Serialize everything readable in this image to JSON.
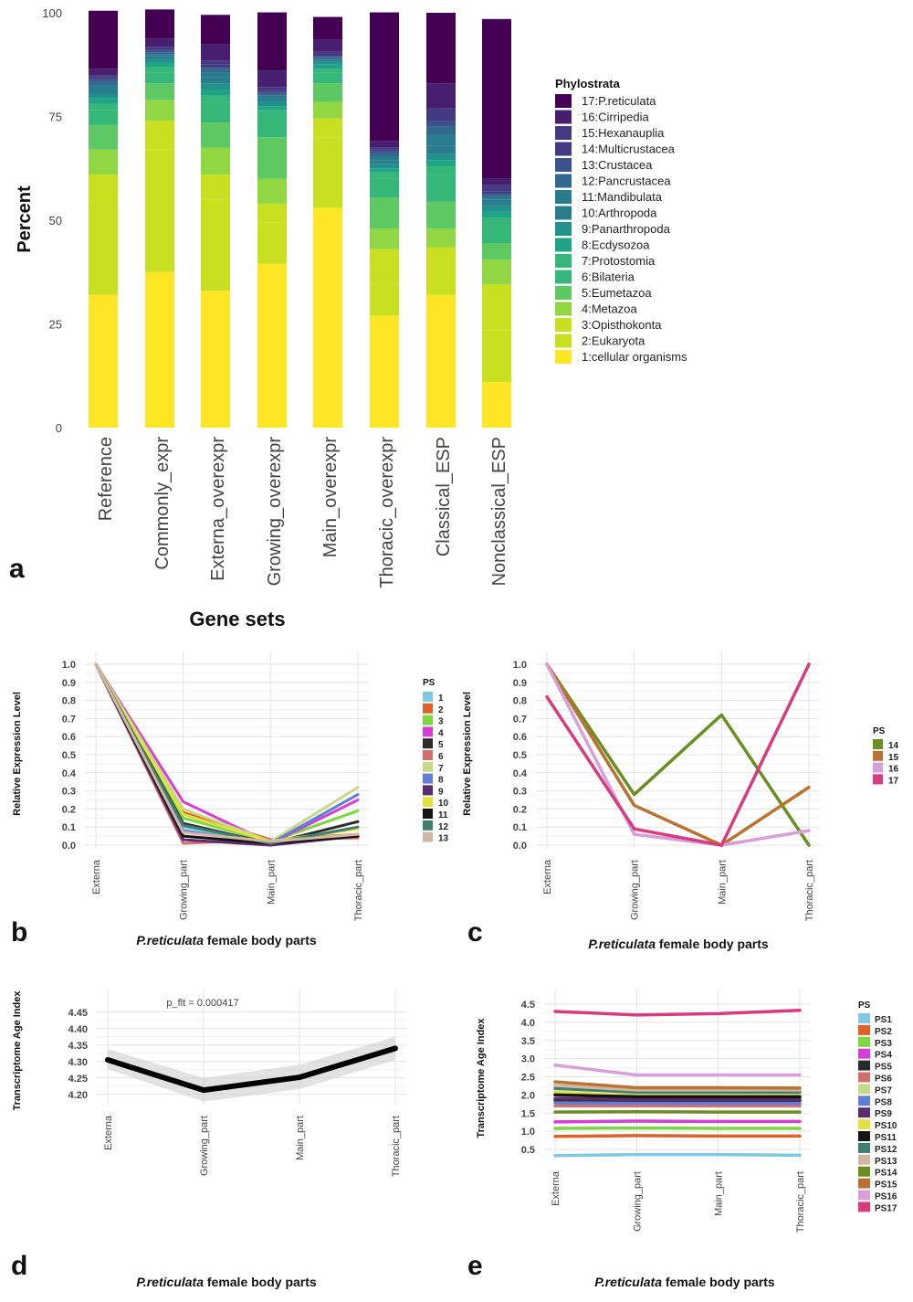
{
  "palette": {
    "ps_17": [
      "#440154",
      "#481F70",
      "#443983",
      "#3B528B",
      "#31688E",
      "#287C8E",
      "#21918C",
      "#20A486",
      "#35B779",
      "#5EC962",
      "#90D743",
      "#C8E020",
      "#FDE725"
    ],
    "lines_13": [
      "#7EC8E3",
      "#E0602A",
      "#7BD63F",
      "#D63FD6",
      "#2B2B2B",
      "#D27070",
      "#C8D88A",
      "#5F7FD6",
      "#5B2C6F",
      "#E1E141",
      "#141414",
      "#3F7F6F",
      "#D2B8A4"
    ],
    "lines_17": [
      "#7EC8E3",
      "#E0602A",
      "#7BD63F",
      "#D63FD6",
      "#2B2B2B",
      "#D27070",
      "#C8D88A",
      "#5F7FD6",
      "#5B2C6F",
      "#E1E141",
      "#141414",
      "#3F7F6F",
      "#D2B8A4",
      "#6B8E23",
      "#B87333",
      "#D8A0D8",
      "#D63C7E"
    ]
  },
  "panels": {
    "a": {
      "letter": "a",
      "xlabel": "Gene sets",
      "ylabel": "Percent",
      "legend_title": "Phylostrata"
    },
    "b": {
      "letter": "b",
      "ylabel": "Relative Expression Level",
      "xlabel_italic": "P.reticulata",
      "xlabel_rest": " female body parts",
      "legend_title": "PS"
    },
    "c": {
      "letter": "c",
      "ylabel": "Relative Expression Level",
      "xlabel_italic": "P.reticulata",
      "xlabel_rest": " female body parts",
      "legend_title": "PS"
    },
    "d": {
      "letter": "d",
      "ylabel": "Transcriptome Age Index",
      "xlabel_italic": "P.reticulata",
      "xlabel_rest": " female body parts",
      "annotation": "p_flt = 0.000417"
    },
    "e": {
      "letter": "e",
      "ylabel": "Transcriptome Age Index",
      "xlabel_italic": "P.reticulata",
      "xlabel_rest": " female body parts",
      "legend_title": "PS"
    }
  },
  "chart_data": [
    {
      "type": "bar",
      "stacked": true,
      "panel": "a",
      "categories": [
        "Reference",
        "Commonly_expr",
        "Externa_overexpr",
        "Growing_overexpr",
        "Main_overexpr",
        "Thoracic_overexpr",
        "Classical_ESP",
        "Nonclassical_ESP"
      ],
      "ylim": [
        0,
        100
      ],
      "yticks": [
        "0",
        "25",
        "50",
        "75",
        "100"
      ],
      "legend_labels": [
        "17:P.reticulata",
        "16:Cirripedia",
        "15:Hexanauplia",
        "14:Multicrustacea",
        "13:Crustacea",
        "12:Pancrustacea",
        "11:Mandibulata",
        "10:Arthropoda",
        "9:Panarthropoda",
        "8:Ecdysozoa",
        "7:Protostomia",
        "6:Bilateria",
        "5:Eumetazoa",
        "4:Metazoa",
        "3:Opisthokonta",
        "2:Eukaryota",
        "1:cellular organisms"
      ],
      "series": [
        {
          "name": "1:cellular organisms",
          "values": [
            32,
            37.5,
            33,
            39.5,
            53,
            27,
            32,
            11
          ]
        },
        {
          "name": "2:Eukaryota",
          "values": [
            22.5,
            29.5,
            22,
            10,
            17,
            7.5,
            7,
            12.5
          ]
        },
        {
          "name": "3:Opisthokonta",
          "values": [
            6.5,
            7,
            6,
            4.5,
            4.5,
            8.5,
            4.5,
            11
          ]
        },
        {
          "name": "4:Metazoa",
          "values": [
            6,
            5,
            6.5,
            6,
            4,
            5,
            4.5,
            6
          ]
        },
        {
          "name": "5:Eumetazoa",
          "values": [
            6,
            4,
            6,
            10,
            4.5,
            7.5,
            6.5,
            4
          ]
        },
        {
          "name": "6:Bilateria",
          "values": [
            3.5,
            2.5,
            5,
            5,
            2.5,
            4.5,
            6.5,
            4.5
          ]
        },
        {
          "name": "7:Protostomia",
          "values": [
            1.5,
            1.5,
            1.5,
            1.5,
            1,
            1.5,
            2,
            1.5
          ]
        },
        {
          "name": "8:Ecdysozoa",
          "values": [
            1.5,
            1,
            1.5,
            1,
            1,
            1,
            1.5,
            1.5
          ]
        },
        {
          "name": "9:Panarthropoda",
          "values": [
            1,
            0.8,
            1.5,
            1,
            0.8,
            1,
            1.5,
            1.5
          ]
        },
        {
          "name": "10:Arthropoda",
          "values": [
            1,
            0.7,
            1.5,
            1,
            0.4,
            1,
            2,
            1.5
          ]
        },
        {
          "name": "11:Mandibulata",
          "values": [
            1,
            0.5,
            1,
            0.5,
            0.3,
            0.8,
            2.5,
            0.5
          ]
        },
        {
          "name": "12:Pancrustacea",
          "values": [
            1,
            0.5,
            1,
            0.5,
            0.2,
            0.8,
            2,
            0.5
          ]
        },
        {
          "name": "13:Crustacea",
          "values": [
            0.5,
            0.3,
            0.5,
            0.3,
            0.2,
            0.5,
            1.5,
            0.5
          ]
        },
        {
          "name": "14:Multicrustacea",
          "values": [
            0.5,
            0.3,
            0.5,
            0.3,
            0.2,
            0.5,
            1,
            0.5
          ]
        },
        {
          "name": "15:Hexanauplia",
          "values": [
            0.5,
            0.7,
            1,
            1,
            1,
            0.5,
            2,
            1.5
          ]
        },
        {
          "name": "16:Cirripedia",
          "values": [
            1.5,
            2,
            4,
            4,
            3,
            1.5,
            6,
            1.5
          ]
        },
        {
          "name": "17:P.reticulata",
          "values": [
            14,
            7,
            7,
            14,
            5.4,
            31,
            17,
            38.5
          ]
        }
      ]
    },
    {
      "type": "line",
      "panel": "b",
      "categories": [
        "Externa",
        "Growing_part",
        "Main_part",
        "Thoracic_part"
      ],
      "ylim": [
        0,
        1
      ],
      "yticks": [
        "0.0",
        "0.1",
        "0.2",
        "0.3",
        "0.4",
        "0.5",
        "0.6",
        "0.7",
        "0.8",
        "0.9",
        "1.0"
      ],
      "series": [
        {
          "name": "1",
          "values": [
            1,
            0.1,
            0.01,
            0.05
          ]
        },
        {
          "name": "2",
          "values": [
            1,
            0.18,
            0.03,
            0.06
          ]
        },
        {
          "name": "3",
          "values": [
            1,
            0.15,
            0.02,
            0.19
          ]
        },
        {
          "name": "4",
          "values": [
            1,
            0.24,
            0.01,
            0.25
          ]
        },
        {
          "name": "5",
          "values": [
            1,
            0.12,
            0.01,
            0.13
          ]
        },
        {
          "name": "6",
          "values": [
            1,
            0.01,
            0.03,
            0.04
          ]
        },
        {
          "name": "7",
          "values": [
            1,
            0.2,
            0.02,
            0.32
          ]
        },
        {
          "name": "8",
          "values": [
            1,
            0.08,
            0.01,
            0.28
          ]
        },
        {
          "name": "9",
          "values": [
            1,
            0.03,
            0,
            0.05
          ]
        },
        {
          "name": "10",
          "values": [
            1,
            0.17,
            0.02,
            0.09
          ]
        },
        {
          "name": "11",
          "values": [
            1,
            0.05,
            0.01,
            0.05
          ]
        },
        {
          "name": "12",
          "values": [
            1,
            0.11,
            0.01,
            0.1
          ]
        },
        {
          "name": "13",
          "values": [
            1,
            0.07,
            0.02,
            0.06
          ]
        }
      ]
    },
    {
      "type": "line",
      "panel": "c",
      "categories": [
        "Externa",
        "Growing_part",
        "Main_part",
        "Thoracic_part"
      ],
      "ylim": [
        0,
        1
      ],
      "yticks": [
        "0.0",
        "0.1",
        "0.2",
        "0.3",
        "0.4",
        "0.5",
        "0.6",
        "0.7",
        "0.8",
        "0.9",
        "1.0"
      ],
      "series": [
        {
          "name": "14",
          "values": [
            1,
            0.28,
            0.72,
            0
          ]
        },
        {
          "name": "15",
          "values": [
            1,
            0.22,
            0,
            0.32
          ]
        },
        {
          "name": "16",
          "values": [
            1,
            0.06,
            0,
            0.08
          ]
        },
        {
          "name": "17",
          "values": [
            0.82,
            0.09,
            0,
            1
          ]
        }
      ]
    },
    {
      "type": "line",
      "panel": "d",
      "categories": [
        "Externa",
        "Growing_part",
        "Main_part",
        "Thoracic_part"
      ],
      "ylim": [
        4.18,
        4.48
      ],
      "yticks": [
        "4.20",
        "4.25",
        "4.30",
        "4.35",
        "4.40",
        "4.45"
      ],
      "series": [
        {
          "name": "TAI",
          "values": [
            4.305,
            4.213,
            4.252,
            4.34
          ],
          "lower": [
            4.277,
            4.178,
            4.216,
            4.305
          ],
          "upper": [
            4.338,
            4.25,
            4.29,
            4.375
          ]
        }
      ]
    },
    {
      "type": "line",
      "panel": "e",
      "categories": [
        "Externa",
        "Growing_part",
        "Main_part",
        "Thoracic_part"
      ],
      "ylim": [
        0.3,
        4.55
      ],
      "yticks": [
        "0.5",
        "1.0",
        "1.5",
        "2.0",
        "2.5",
        "3.0",
        "3.5",
        "4.0",
        "4.5"
      ],
      "series": [
        {
          "name": "PS1",
          "values": [
            0.33,
            0.36,
            0.36,
            0.34
          ]
        },
        {
          "name": "PS2",
          "values": [
            0.86,
            0.88,
            0.87,
            0.87
          ]
        },
        {
          "name": "PS3",
          "values": [
            1.08,
            1.09,
            1.08,
            1.08
          ]
        },
        {
          "name": "PS4",
          "values": [
            1.26,
            1.28,
            1.27,
            1.27
          ]
        },
        {
          "name": "PS5",
          "values": [
            1.85,
            1.84,
            1.84,
            1.84
          ]
        },
        {
          "name": "PS6",
          "values": [
            1.7,
            1.7,
            1.7,
            1.7
          ]
        },
        {
          "name": "PS7",
          "values": [
            2.03,
            2.0,
            2.0,
            2.0
          ]
        },
        {
          "name": "PS8",
          "values": [
            1.78,
            1.77,
            1.77,
            1.77
          ]
        },
        {
          "name": "PS9",
          "values": [
            1.9,
            1.88,
            1.88,
            1.88
          ]
        },
        {
          "name": "PS10",
          "values": [
            2.08,
            1.97,
            1.97,
            1.97
          ]
        },
        {
          "name": "PS11",
          "values": [
            2.0,
            1.95,
            1.95,
            1.95
          ]
        },
        {
          "name": "PS12",
          "values": [
            2.18,
            2.08,
            2.08,
            2.08
          ]
        },
        {
          "name": "PS13",
          "values": [
            2.26,
            2.14,
            2.14,
            2.14
          ]
        },
        {
          "name": "PS14",
          "values": [
            1.53,
            1.54,
            1.53,
            1.53
          ]
        },
        {
          "name": "PS15",
          "values": [
            2.36,
            2.2,
            2.2,
            2.19
          ]
        },
        {
          "name": "PS16",
          "values": [
            2.82,
            2.55,
            2.55,
            2.55
          ]
        },
        {
          "name": "PS17",
          "values": [
            4.3,
            4.2,
            4.24,
            4.33
          ]
        }
      ]
    }
  ]
}
